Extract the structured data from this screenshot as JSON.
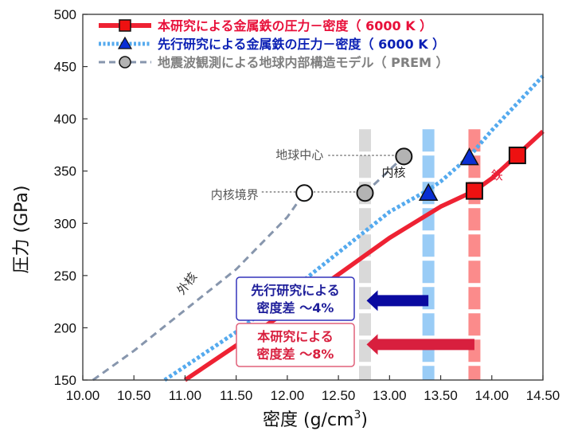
{
  "chart_data": {
    "type": "scatter",
    "xlabel_main": "密度 (g/cm",
    "xlabel_sup": "3",
    "xlabel_end": ")",
    "ylabel": "圧力 (GPa)",
    "xlim": [
      10.0,
      14.5
    ],
    "ylim": [
      150,
      500
    ],
    "x_ticks": [
      "10.00",
      "10.50",
      "11.00",
      "11.50",
      "12.00",
      "12.50",
      "13.00",
      "13.50",
      "14.00",
      "14.50"
    ],
    "y_ticks": [
      "150",
      "200",
      "250",
      "300",
      "350",
      "400",
      "450",
      "500"
    ],
    "grid": false,
    "legend": {
      "position": "top-left",
      "entries": [
        {
          "label": "本研究による金属鉄の圧力－密度（ 6000 K ）",
          "color": "#ee2233",
          "text_color": "#e8103a",
          "style": "solid",
          "marker": "square"
        },
        {
          "label": "先行研究による金属鉄の圧力－密度（ 6000 K ）",
          "color": "#55aaee",
          "text_color": "#0a1fb4",
          "style": "dotted",
          "marker": "triangle"
        },
        {
          "label": "地震波観測による地球内部構造モデル（ PREM ）",
          "color": "#8796ad",
          "text_color": "#808080",
          "style": "dashed",
          "marker": "circle"
        }
      ]
    },
    "series": [
      {
        "name": "本研究による金属鉄の圧力－密度（ 6000 K ）",
        "kind": "line",
        "color": "#ee2233",
        "x": [
          11.0,
          11.5,
          12.0,
          12.5,
          13.0,
          13.5,
          13.83,
          14.0,
          14.5
        ],
        "y": [
          150,
          183,
          216,
          251,
          286,
          316,
          331,
          343,
          388
        ]
      },
      {
        "name": "先行研究による金属鉄の圧力－密度（ 6000 K ）",
        "kind": "line",
        "color": "#55aaee",
        "x": [
          10.8,
          11.0,
          11.5,
          12.0,
          12.5,
          13.0,
          13.38,
          13.5,
          13.78,
          14.0,
          14.5
        ],
        "y": [
          150,
          163,
          196,
          233,
          272,
          311,
          332,
          340,
          364,
          389,
          441
        ]
      },
      {
        "name": "地震波観測による地球内部構造モデル（ PREM ）",
        "kind": "line",
        "color": "#8796ad",
        "x": [
          10.1,
          10.5,
          11.0,
          11.5,
          12.0,
          12.166
        ],
        "y": [
          150,
          178,
          217,
          256,
          306,
          329
        ]
      },
      {
        "name": "PREM_inner",
        "kind": "line",
        "color": "#8796ad",
        "x": [
          12.76,
          13.14
        ],
        "y": [
          329,
          364
        ]
      }
    ],
    "markers": [
      {
        "shape": "square",
        "x": 13.83,
        "y": 331,
        "fill": "#ee1111",
        "stroke": "#111"
      },
      {
        "shape": "square",
        "x": 14.25,
        "y": 365,
        "fill": "#ee1111",
        "stroke": "#111"
      },
      {
        "shape": "triangle",
        "x": 13.38,
        "y": 329,
        "fill": "#0a2fd4",
        "stroke": "#111"
      },
      {
        "shape": "triangle",
        "x": 13.78,
        "y": 363,
        "fill": "#0a2fd4",
        "stroke": "#111"
      },
      {
        "shape": "circle",
        "x": 12.166,
        "y": 329,
        "fill": "#ffffff",
        "stroke": "#111"
      },
      {
        "shape": "circle",
        "x": 12.76,
        "y": 329,
        "fill": "#b3b3b3",
        "stroke": "#111"
      },
      {
        "shape": "circle",
        "x": 13.14,
        "y": 364,
        "fill": "#b3b3b3",
        "stroke": "#111"
      }
    ],
    "bands": [
      {
        "x": 12.76,
        "color": "#d9d9d9"
      },
      {
        "x": 13.38,
        "color": "#99ccf6"
      },
      {
        "x": 13.83,
        "color": "#fb8b8b"
      }
    ],
    "annotations": {
      "earth_center": {
        "text": "地球中心",
        "x": 12.4,
        "y": 366
      },
      "icb": {
        "text": "内核境界",
        "x": 11.75,
        "y": 328
      },
      "inner_core": {
        "text": "内核",
        "x": 13.04,
        "y": 345
      },
      "iron": {
        "text": "鉄",
        "x": 14.05,
        "y": 342
      },
      "outer_core": {
        "text": "外核",
        "x": 11.05,
        "y": 240
      }
    },
    "dotted_leaders": [
      {
        "x1": 12.4,
        "y1": 365,
        "x2": 13.14,
        "y2": 365
      },
      {
        "x1": 11.75,
        "y1": 330,
        "x2": 12.76,
        "y2": 330
      }
    ],
    "boxes": [
      {
        "lines": [
          "先行研究による",
          "密度差 ～4%"
        ],
        "color": "#1e1e9a",
        "border": "#3333bb"
      },
      {
        "lines": [
          "本研究による",
          "密度差 ～8%"
        ],
        "color": "#d81f3e",
        "border": "#e0607a"
      }
    ],
    "arrows": [
      {
        "x_from": 13.38,
        "x_to": 12.76,
        "y": 226,
        "color": "#0a0aa0"
      },
      {
        "x_from": 13.83,
        "x_to": 12.76,
        "y": 184,
        "color": "#d81f3e"
      }
    ]
  }
}
